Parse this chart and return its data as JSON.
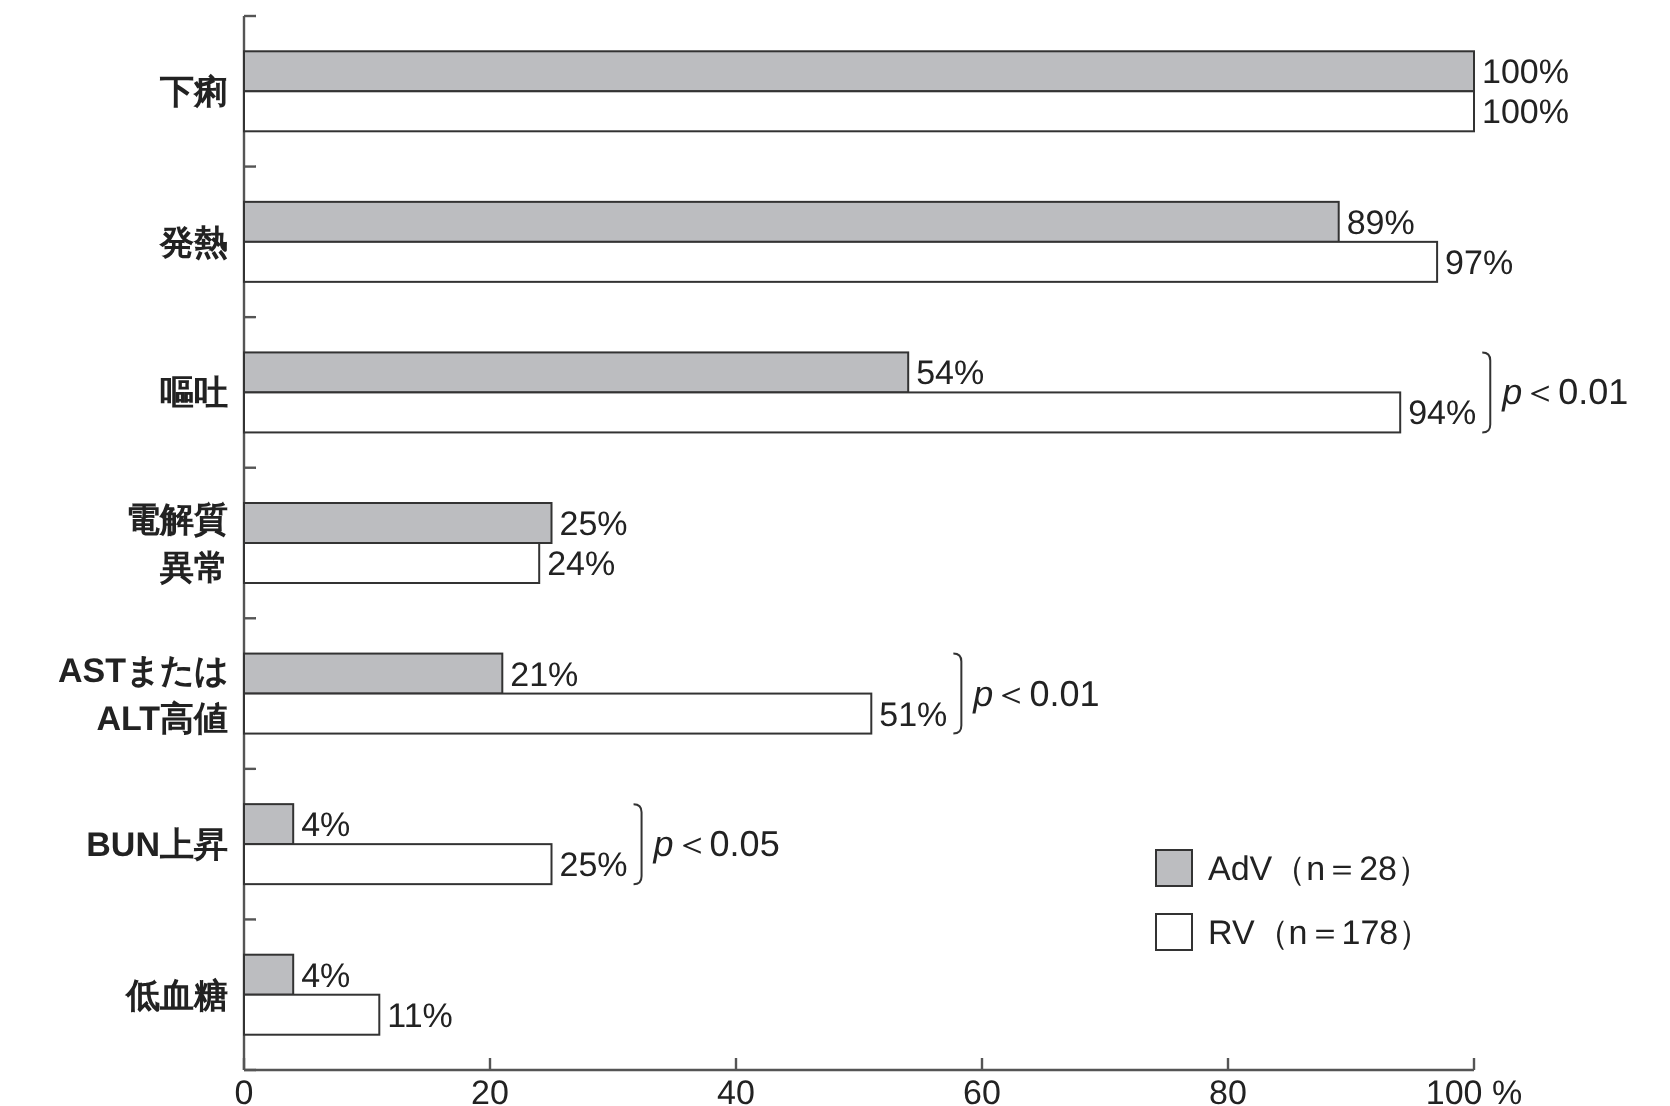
{
  "chart_data": {
    "type": "bar",
    "orientation": "horizontal",
    "categories": [
      "下痢",
      "発熱",
      "嘔吐",
      "電解質異常",
      "ASTまたはALT高値",
      "BUN上昇",
      "低血糖"
    ],
    "series": [
      {
        "name": "AdV（n＝28）",
        "color": "#bcbdc0",
        "values": [
          100,
          89,
          54,
          25,
          21,
          4,
          4
        ],
        "value_labels": [
          "100%",
          "89%",
          "54%",
          "25%",
          "21%",
          "4%",
          "4%"
        ]
      },
      {
        "name": "RV（n＝178）",
        "color": "#ffffff",
        "values": [
          100,
          97,
          94,
          24,
          51,
          25,
          11
        ],
        "value_labels": [
          "100%",
          "97%",
          "94%",
          "24%",
          "51%",
          "25%",
          "11%"
        ]
      }
    ],
    "xlim": [
      0,
      100
    ],
    "xticks": [
      0,
      20,
      40,
      60,
      80,
      {
        "value": 100,
        "label": "100 %"
      }
    ],
    "legend": "bottom right",
    "grid": false,
    "annotations": [
      "p＜0.01",
      "p＜0.01",
      "p＜0.05"
    ]
  }
}
